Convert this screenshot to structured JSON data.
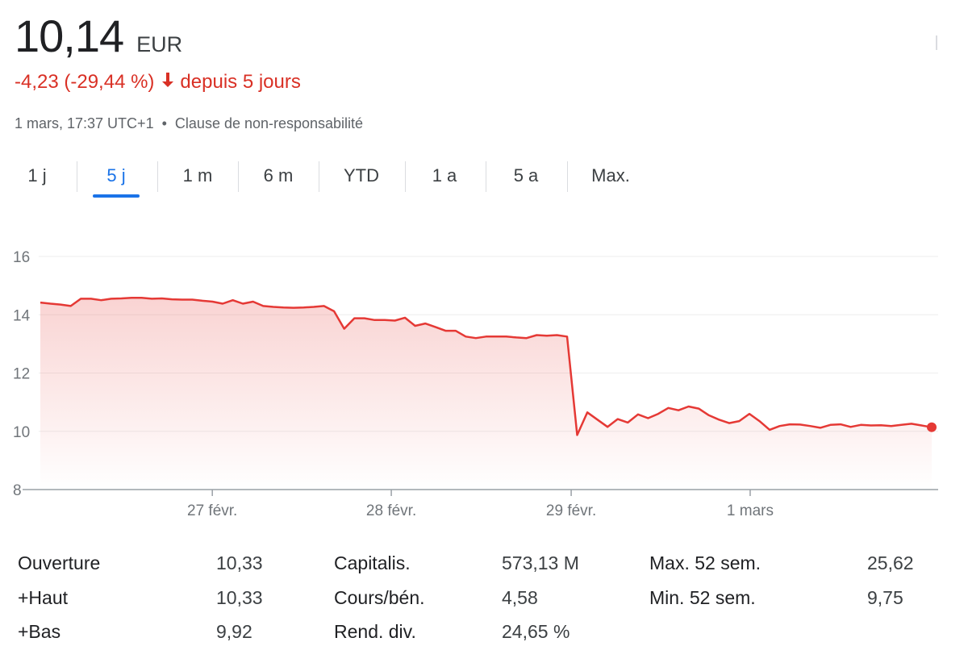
{
  "quote": {
    "price": "10,14",
    "currency": "EUR",
    "change": "-4,23 (-29,44 %)",
    "change_period": "depuis 5 jours",
    "timestamp": "1 mars, 17:37 UTC+1",
    "disclaimer": "Clause de non-responsabilité",
    "change_color": "#d93025"
  },
  "tabs": [
    {
      "label": "1 j",
      "active": false
    },
    {
      "label": "5 j",
      "active": true
    },
    {
      "label": "1 m",
      "active": false
    },
    {
      "label": "6 m",
      "active": false
    },
    {
      "label": "YTD",
      "active": false
    },
    {
      "label": "1 a",
      "active": false
    },
    {
      "label": "5 a",
      "active": false
    },
    {
      "label": "Max.",
      "active": false
    }
  ],
  "chart_data": {
    "type": "area",
    "ylim": [
      8,
      16
    ],
    "y_ticks": [
      "16",
      "14",
      "12",
      "10",
      "8"
    ],
    "x_ticks": [
      "27 févr.",
      "28 févr.",
      "29 févr.",
      "1 mars"
    ],
    "line_color": "#e53935",
    "grid": true,
    "series": [
      {
        "values": [
          14.42,
          14.38,
          14.35,
          14.3,
          14.55,
          14.55,
          14.5,
          14.55,
          14.56,
          14.58,
          14.58,
          14.55,
          14.56,
          14.53,
          14.52,
          14.52,
          14.48,
          14.45,
          14.38,
          14.5,
          14.38,
          14.45,
          14.3,
          14.27,
          14.25,
          14.24,
          14.25,
          14.27,
          14.3,
          14.12,
          13.52,
          13.88,
          13.88,
          13.82,
          13.82,
          13.8,
          13.9,
          13.62,
          13.7,
          13.58,
          13.45,
          13.45,
          13.25,
          13.2,
          13.25,
          13.25,
          13.25,
          13.22,
          13.2,
          13.3,
          13.28,
          13.3,
          13.25,
          9.87,
          10.65,
          10.4,
          10.15,
          10.42,
          10.3,
          10.58,
          10.45,
          10.6,
          10.8,
          10.72,
          10.85,
          10.78,
          10.55,
          10.4,
          10.28,
          10.35,
          10.6,
          10.35,
          10.05,
          10.18,
          10.24,
          10.23,
          10.18,
          10.12,
          10.22,
          10.24,
          10.15,
          10.22,
          10.2,
          10.21,
          10.18,
          10.22,
          10.26,
          10.2,
          10.14
        ]
      }
    ]
  },
  "stats": [
    {
      "label": "Ouverture",
      "value": "10,33"
    },
    {
      "label": "+Haut",
      "value": "10,33"
    },
    {
      "label": "+Bas",
      "value": "9,92"
    },
    {
      "label": "Capitalis.",
      "value": "573,13 M"
    },
    {
      "label": "Cours/bén.",
      "value": "4,58"
    },
    {
      "label": "Rend. div.",
      "value": "24,65 %"
    },
    {
      "label": "Max. 52 sem.",
      "value": "25,62"
    },
    {
      "label": "Min. 52 sem.",
      "value": "9,75"
    }
  ]
}
